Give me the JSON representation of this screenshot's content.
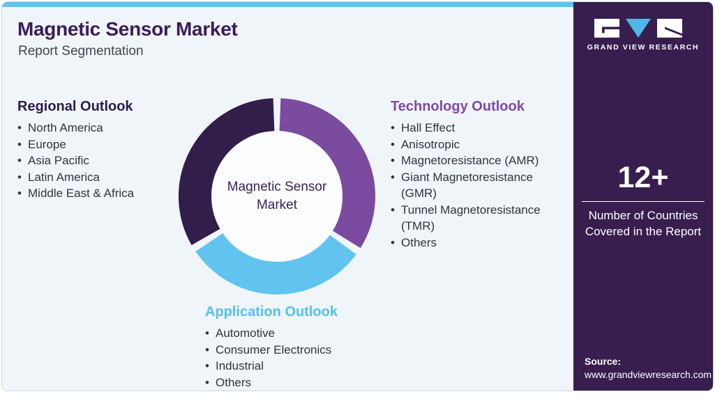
{
  "header": {
    "title": "Magnetic Sensor Market",
    "subtitle": "Report Segmentation"
  },
  "sections": {
    "regional": {
      "heading": "Regional Outlook",
      "items": [
        "North America",
        "Europe",
        "Asia Pacific",
        "Latin America",
        "Middle East & Africa"
      ]
    },
    "technology": {
      "heading": "Technology Outlook",
      "items": [
        "Hall Effect",
        "Anisotropic",
        "Magnetoresistance (AMR)",
        "Giant Magnetoresistance (GMR)",
        "Tunnel Magnetoresistance (TMR)",
        "Others"
      ]
    },
    "application": {
      "heading": "Application Outlook",
      "items": [
        "Automotive",
        "Consumer Electronics",
        "Industrial",
        "Others"
      ]
    }
  },
  "donut": {
    "center_label": "Magnetic Sensor Market"
  },
  "chart_data": {
    "type": "pie",
    "title": "Magnetic Sensor Market — Report Segmentation",
    "donut": true,
    "center_label": "Magnetic Sensor Market",
    "start_angle_deg": 0,
    "segments": [
      {
        "name": "Technology Outlook",
        "angle_deg": 124,
        "share_pct": 34.4,
        "color": "#7b4ba0"
      },
      {
        "name": "Application Outlook",
        "angle_deg": 114,
        "share_pct": 31.7,
        "color": "#62c4ee"
      },
      {
        "name": "Regional Outlook",
        "angle_deg": 122,
        "share_pct": 33.9,
        "color": "#311e4b"
      }
    ],
    "hole_color": "#fcfdff",
    "gap_deg": 2.2
  },
  "sidebar": {
    "logo_text": "GRAND VIEW RESEARCH",
    "stat_value": "12+",
    "stat_label": "Number of Countries Covered in the Report",
    "source_label": "Source:",
    "source_url": "www.grandviewresearch.com"
  },
  "colors": {
    "accent_bar": "#5fc3ee",
    "sidebar_bg": "#371e4f",
    "title": "#3b1c59",
    "regional_heading": "#2f1b4a",
    "technology_heading": "#7c4aa2",
    "application_heading": "#55bfee",
    "body_text": "#33333b",
    "card_bg": "#f0f5f9"
  }
}
